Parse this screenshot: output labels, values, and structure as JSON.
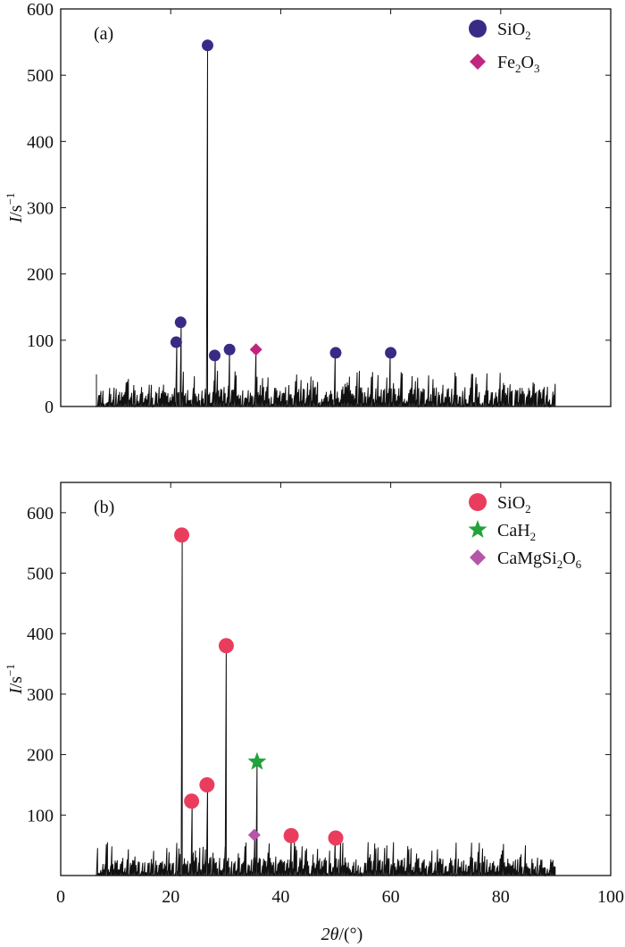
{
  "x_axis": {
    "label_var": "2θ",
    "label_unit": "/(°)",
    "ticks": [
      0,
      20,
      40,
      60,
      80,
      100
    ],
    "range": [
      0,
      100
    ]
  },
  "y_label": {
    "var": "I",
    "unit": "/s",
    "sup": "−1"
  },
  "legend_colors": {
    "SiO2_a": "#3b2a85",
    "Fe2O3": "#c0267f",
    "SiO2_b": "#ea3d5d",
    "CaH2": "#22a23a",
    "CaMgSi2O6": "#b455a8"
  },
  "chart_data": [
    {
      "type": "line",
      "panel_label": "(a)",
      "ylim": [
        0,
        600
      ],
      "yticks": [
        0,
        100,
        200,
        300,
        400,
        500,
        600
      ],
      "x_range": [
        6.5,
        90
      ],
      "legend": [
        {
          "formula": [
            "Si",
            "O",
            "2"
          ],
          "marker": "circle",
          "color": "#3b2a85"
        },
        {
          "formula": [
            "Fe",
            "2",
            "O",
            "3"
          ],
          "marker": "diamond",
          "color": "#c0267f"
        }
      ],
      "peaks": [
        {
          "x": 21.0,
          "y": 97,
          "phase": "SiO2"
        },
        {
          "x": 21.8,
          "y": 127,
          "phase": "SiO2"
        },
        {
          "x": 26.7,
          "y": 545,
          "phase": "SiO2"
        },
        {
          "x": 28.0,
          "y": 77,
          "phase": "SiO2"
        },
        {
          "x": 30.7,
          "y": 86,
          "phase": "SiO2"
        },
        {
          "x": 35.5,
          "y": 86,
          "phase": "Fe2O3"
        },
        {
          "x": 50.0,
          "y": 81,
          "phase": "SiO2"
        },
        {
          "x": 60.0,
          "y": 81,
          "phase": "SiO2"
        }
      ]
    },
    {
      "type": "line",
      "panel_label": "(b)",
      "ylim": [
        0,
        650
      ],
      "yticks": [
        100,
        200,
        300,
        400,
        500,
        600
      ],
      "x_range": [
        6.5,
        90
      ],
      "legend": [
        {
          "formula": [
            "Si",
            "O",
            "2"
          ],
          "marker": "circle",
          "color": "#ea3d5d"
        },
        {
          "formula": [
            "CaH",
            "2"
          ],
          "marker": "star",
          "color": "#22a23a"
        },
        {
          "formula": [
            "CaMgSi",
            "2",
            "O",
            "6"
          ],
          "marker": "diamond",
          "color": "#b455a8"
        }
      ],
      "peaks": [
        {
          "x": 22.0,
          "y": 563,
          "phase": "SiO2"
        },
        {
          "x": 23.8,
          "y": 123,
          "phase": "SiO2"
        },
        {
          "x": 26.6,
          "y": 150,
          "phase": "SiO2"
        },
        {
          "x": 30.1,
          "y": 380,
          "phase": "SiO2"
        },
        {
          "x": 35.7,
          "y": 188,
          "phase": "CaH2"
        },
        {
          "x": 35.2,
          "y": 67,
          "phase": "CaMgSi2O6"
        },
        {
          "x": 41.9,
          "y": 66,
          "phase": "SiO2"
        },
        {
          "x": 50.0,
          "y": 62,
          "phase": "SiO2"
        }
      ]
    }
  ]
}
